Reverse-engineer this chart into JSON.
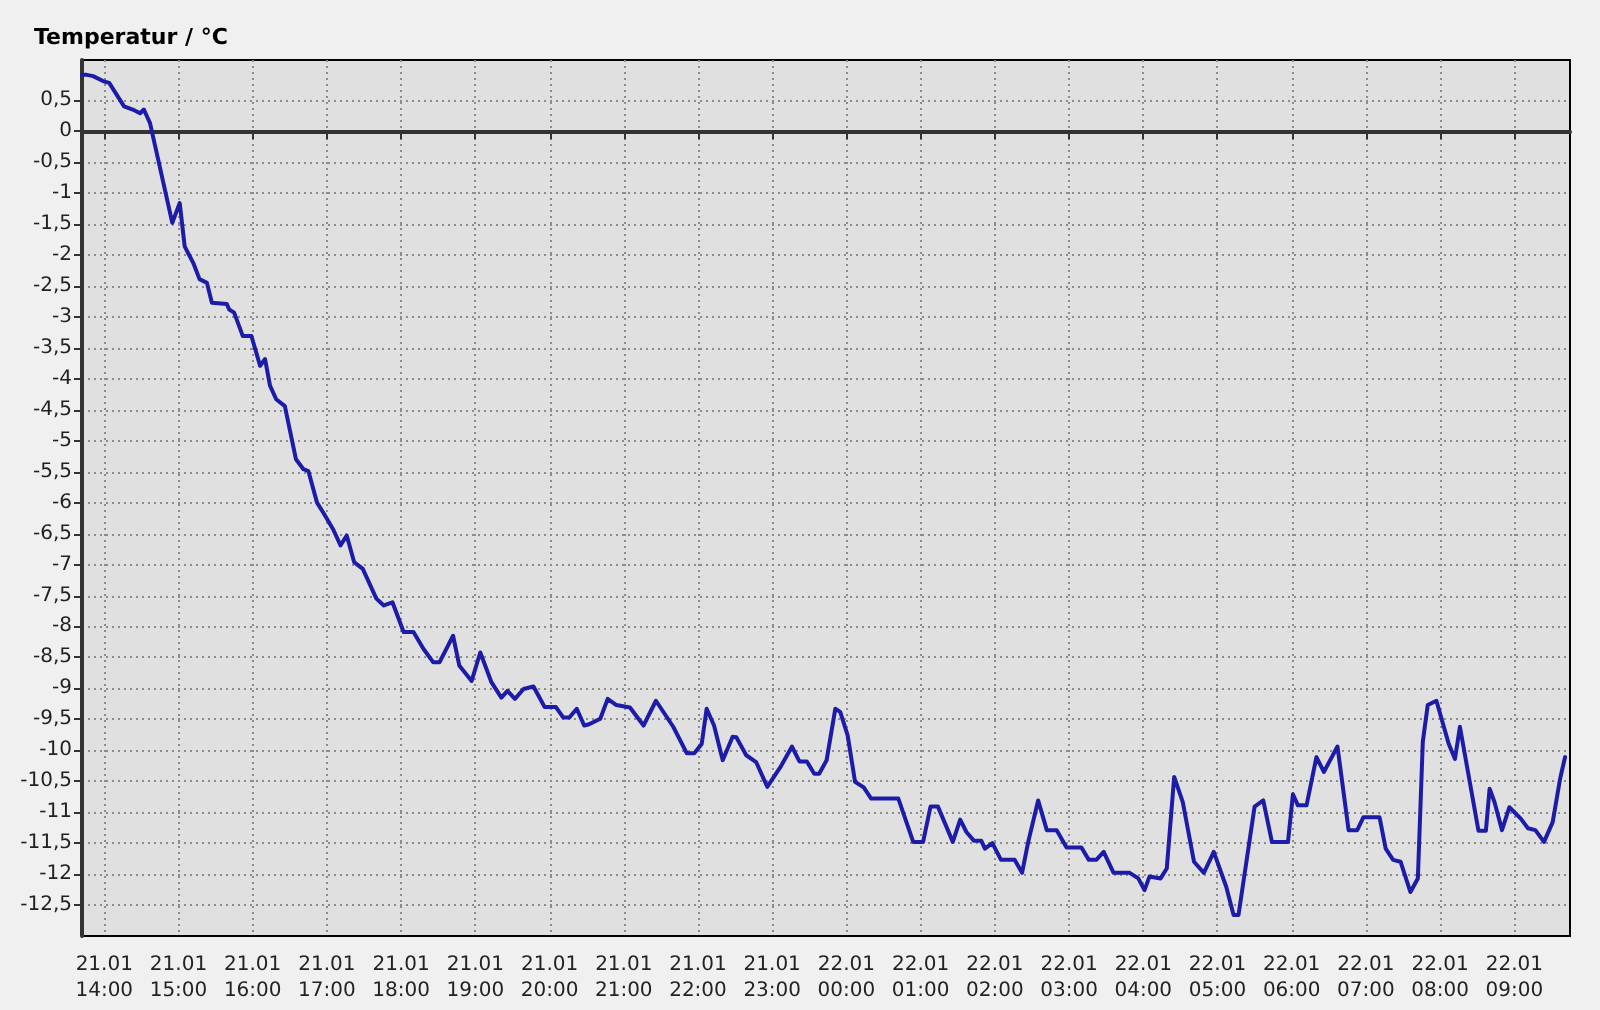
{
  "chart_data": {
    "type": "line",
    "ylabel": "Temperatur / °C",
    "x": [
      "--01-21T13:42",
      "--01-21T13:46",
      "--01-21T13:51",
      "--01-21T13:59",
      "--01-21T14:04",
      "--01-21T14:16",
      "--01-21T14:23",
      "--01-21T14:29",
      "--01-21T14:32",
      "--01-21T14:37",
      "--01-21T14:55",
      "--01-21T14:58",
      "--01-21T15:01",
      "--01-21T15:05",
      "--01-21T15:12",
      "--01-21T15:17",
      "--01-21T15:23",
      "--01-21T15:27",
      "--01-21T15:39",
      "--01-21T15:41",
      "--01-21T15:45",
      "--01-21T15:52",
      "--01-21T15:59",
      "--01-21T16:06",
      "--01-21T16:10",
      "--01-21T16:14",
      "--01-21T16:19",
      "--01-21T16:26",
      "--01-21T16:35",
      "--01-21T16:41",
      "--01-21T16:45",
      "--01-21T16:52",
      "--01-21T16:57",
      "--01-21T17:05",
      "--01-21T17:11",
      "--01-21T17:16",
      "--01-21T17:22",
      "--01-21T17:29",
      "--01-21T17:40",
      "--01-21T17:46",
      "--01-21T17:53",
      "--01-21T18:02",
      "--01-21T18:10",
      "--01-21T18:18",
      "--01-21T18:26",
      "--01-21T18:31",
      "--01-21T18:42",
      "--01-21T18:47",
      "--01-21T18:57",
      "--01-21T19:04",
      "--01-21T19:13",
      "--01-21T19:21",
      "--01-21T19:26",
      "--01-21T19:32",
      "--01-21T19:39",
      "--01-21T19:47",
      "--01-21T19:56",
      "--01-21T20:05",
      "--01-21T20:11",
      "--01-21T20:16",
      "--01-21T20:22",
      "--01-21T20:28",
      "--01-21T20:32",
      "--01-21T20:41",
      "--01-21T20:47",
      "--01-21T20:54",
      "--01-21T21:05",
      "--01-21T21:16",
      "--01-21T21:26",
      "--01-21T21:40",
      "--01-21T21:51",
      "--01-21T21:57",
      "--01-21T22:03",
      "--01-21T22:07",
      "--01-21T22:13",
      "--01-21T22:20",
      "--01-21T22:28",
      "--01-21T22:31",
      "--01-21T22:39",
      "--01-21T22:47",
      "--01-21T22:56",
      "--01-21T23:07",
      "--01-21T23:16",
      "--01-21T23:22",
      "--01-21T23:28",
      "--01-21T23:34",
      "--01-21T23:38",
      "--01-21T23:44",
      "--01-21T23:51",
      "--01-21T23:55",
      "--01-22T00:01",
      "--01-22T00:07",
      "--01-22T00:14",
      "--01-22T00:20",
      "--01-22T00:42",
      "--01-22T00:54",
      "--01-22T01:02",
      "--01-22T01:08",
      "--01-22T01:14",
      "--01-22T01:26",
      "--01-22T01:32",
      "--01-22T01:37",
      "--01-22T01:43",
      "--01-22T01:49",
      "--01-22T01:52",
      "--01-22T01:58",
      "--01-22T02:05",
      "--01-22T02:16",
      "--01-22T02:22",
      "--01-22T02:27",
      "--01-22T02:35",
      "--01-22T02:42",
      "--01-22T02:50",
      "--01-22T02:58",
      "--01-22T03:10",
      "--01-22T03:16",
      "--01-22T03:22",
      "--01-22T03:28",
      "--01-22T03:36",
      "--01-22T03:49",
      "--01-22T03:56",
      "--01-22T04:01",
      "--01-22T04:05",
      "--01-22T04:14",
      "--01-22T04:19",
      "--01-22T04:25",
      "--01-22T04:32",
      "--01-22T04:41",
      "--01-22T04:49",
      "--01-22T04:57",
      "--01-22T05:07",
      "--01-22T05:13",
      "--01-22T05:17",
      "--01-22T05:30",
      "--01-22T05:37",
      "--01-22T05:44",
      "--01-22T05:57",
      "--01-22T06:01",
      "--01-22T06:05",
      "--01-22T06:12",
      "--01-22T06:20",
      "--01-22T06:26",
      "--01-22T06:37",
      "--01-22T06:46",
      "--01-22T06:53",
      "--01-22T06:58",
      "--01-22T07:11",
      "--01-22T07:16",
      "--01-22T07:22",
      "--01-22T07:28",
      "--01-22T07:36",
      "--01-22T07:42",
      "--01-22T07:46",
      "--01-22T07:50",
      "--01-22T07:57",
      "--01-22T08:07",
      "--01-22T08:12",
      "--01-22T08:16",
      "--01-22T08:31",
      "--01-22T08:37",
      "--01-22T08:40",
      "--01-22T08:44",
      "--01-22T08:50",
      "--01-22T08:56",
      "--01-22T09:05",
      "--01-22T09:11",
      "--01-22T09:17",
      "--01-22T09:24",
      "--01-22T09:31",
      "--01-22T09:37",
      "--01-22T09:41"
    ],
    "series": [
      {
        "color": "#1c1ca8",
        "values": [
          0.91,
          0.91,
          0.89,
          0.81,
          0.78,
          0.4,
          0.35,
          0.29,
          0.35,
          0.13,
          -1.48,
          -1.32,
          -1.16,
          -1.86,
          -2.13,
          -2.39,
          -2.45,
          -2.77,
          -2.79,
          -2.88,
          -2.93,
          -3.31,
          -3.31,
          -3.79,
          -3.68,
          -4.11,
          -4.33,
          -4.44,
          -5.3,
          -5.46,
          -5.49,
          -6.0,
          -6.16,
          -6.43,
          -6.69,
          -6.53,
          -6.96,
          -7.07,
          -7.55,
          -7.66,
          -7.61,
          -8.09,
          -8.09,
          -8.36,
          -8.58,
          -8.58,
          -8.15,
          -8.63,
          -8.88,
          -8.42,
          -8.9,
          -9.15,
          -9.04,
          -9.17,
          -9.01,
          -8.97,
          -9.3,
          -9.3,
          -9.47,
          -9.47,
          -9.33,
          -9.6,
          -9.58,
          -9.49,
          -9.17,
          -9.27,
          -9.31,
          -9.6,
          -9.2,
          -9.62,
          -10.05,
          -10.05,
          -9.9,
          -9.33,
          -9.6,
          -10.16,
          -9.78,
          -9.79,
          -10.08,
          -10.19,
          -10.59,
          -10.26,
          -9.94,
          -10.18,
          -10.18,
          -10.38,
          -10.38,
          -10.16,
          -9.33,
          -9.38,
          -9.76,
          -10.51,
          -10.6,
          -10.78,
          -10.78,
          -11.48,
          -11.48,
          -10.91,
          -10.91,
          -11.48,
          -11.12,
          -11.32,
          -11.46,
          -11.46,
          -11.59,
          -11.5,
          -11.77,
          -11.77,
          -11.98,
          -11.48,
          -10.81,
          -11.29,
          -11.29,
          -11.57,
          -11.57,
          -11.77,
          -11.77,
          -11.64,
          -11.98,
          -11.98,
          -12.07,
          -12.26,
          -12.04,
          -12.07,
          -11.91,
          -10.43,
          -10.84,
          -11.8,
          -11.98,
          -11.64,
          -12.2,
          -12.66,
          -12.66,
          -10.91,
          -10.81,
          -11.48,
          -11.48,
          -10.71,
          -10.89,
          -10.89,
          -10.11,
          -10.35,
          -9.94,
          -11.29,
          -11.29,
          -11.08,
          -11.08,
          -11.59,
          -11.77,
          -11.8,
          -12.29,
          -12.07,
          -9.86,
          -9.27,
          -9.2,
          -9.9,
          -10.14,
          -9.62,
          -11.3,
          -11.3,
          -10.62,
          -10.84,
          -11.29,
          -10.92,
          -11.1,
          -11.26,
          -11.29,
          -11.48,
          -11.16,
          -10.46,
          -10.11
        ]
      }
    ],
    "xlim": [
      "--01-21T13:42",
      "--01-22T09:45"
    ],
    "xticks": [
      {
        "value": "--01-21T14:00",
        "label": "21.01\n14:00"
      },
      {
        "value": "--01-21T15:00",
        "label": "21.01\n15:00"
      },
      {
        "value": "--01-21T16:00",
        "label": "21.01\n16:00"
      },
      {
        "value": "--01-21T17:00",
        "label": "21.01\n17:00"
      },
      {
        "value": "--01-21T18:00",
        "label": "21.01\n18:00"
      },
      {
        "value": "--01-21T19:00",
        "label": "21.01\n19:00"
      },
      {
        "value": "--01-21T20:00",
        "label": "21.01\n20:00"
      },
      {
        "value": "--01-21T21:00",
        "label": "21.01\n21:00"
      },
      {
        "value": "--01-21T22:00",
        "label": "21.01\n22:00"
      },
      {
        "value": "--01-21T23:00",
        "label": "21.01\n23:00"
      },
      {
        "value": "--01-22T00:00",
        "label": "22.01\n00:00"
      },
      {
        "value": "--01-22T01:00",
        "label": "22.01\n01:00"
      },
      {
        "value": "--01-22T02:00",
        "label": "22.01\n02:00"
      },
      {
        "value": "--01-22T03:00",
        "label": "22.01\n03:00"
      },
      {
        "value": "--01-22T04:00",
        "label": "22.01\n04:00"
      },
      {
        "value": "--01-22T05:00",
        "label": "22.01\n05:00"
      },
      {
        "value": "--01-22T06:00",
        "label": "22.01\n06:00"
      },
      {
        "value": "--01-22T07:00",
        "label": "22.01\n07:00"
      },
      {
        "value": "--01-22T08:00",
        "label": "22.01\n08:00"
      },
      {
        "value": "--01-22T09:00",
        "label": "22.01\n09:00"
      }
    ],
    "ylim": [
      -13,
      1.15
    ],
    "yticks": [
      {
        "value": 0.5,
        "label": "0,5"
      },
      0,
      {
        "value": -0.5,
        "label": "-0,5"
      },
      -1,
      {
        "value": -1.5,
        "label": "-1,5"
      },
      -2,
      {
        "value": -2.5,
        "label": "-2,5"
      },
      -3,
      {
        "value": -3.5,
        "label": "-3,5"
      },
      -4,
      {
        "value": -4.5,
        "label": "-4,5"
      },
      -5,
      {
        "value": -5.5,
        "label": "-5,5"
      },
      -6,
      {
        "value": -6.5,
        "label": "-6,5"
      },
      -7,
      {
        "value": -7.5,
        "label": "-7,5"
      },
      -8,
      {
        "value": -8.5,
        "label": "-8,5"
      },
      -9,
      {
        "value": -9.5,
        "label": "-9,5"
      },
      -10,
      {
        "value": -10.5,
        "label": "-10,5"
      },
      -11,
      {
        "value": -11.5,
        "label": "-11,5"
      },
      -12,
      {
        "value": -12.5,
        "label": "-12,5"
      }
    ],
    "grid": true,
    "marker": "none",
    "line_style": "solid"
  }
}
